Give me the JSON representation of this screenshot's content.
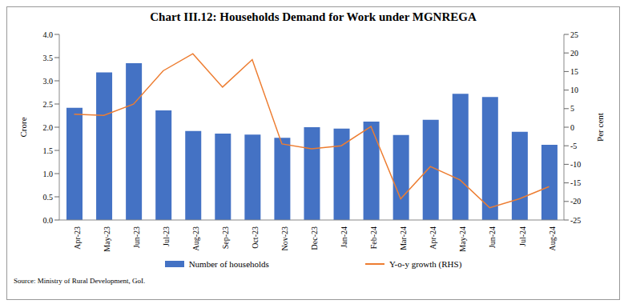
{
  "chart_data": {
    "type": "bar",
    "title": "Chart III.12: Households Demand for Work under MGNREGA",
    "categories": [
      "Apr-23",
      "May-23",
      "Jun-23",
      "Jul-23",
      "Aug-23",
      "Sep-23",
      "Oct-23",
      "Nov-23",
      "Dec-23",
      "Jan-24",
      "Feb-24",
      "Mar-24",
      "Apr-24",
      "May-24",
      "Jun-24",
      "Jul-24",
      "Aug-24"
    ],
    "series": [
      {
        "name": "Number of households",
        "type": "bar",
        "color": "#4472c4",
        "values": [
          2.42,
          3.18,
          3.38,
          2.36,
          1.92,
          1.86,
          1.84,
          1.77,
          2.0,
          1.97,
          2.12,
          1.83,
          2.16,
          2.72,
          2.65,
          1.9,
          1.62
        ]
      },
      {
        "name": "Y-o-y growth (RHS)",
        "type": "line",
        "color": "#ed7d31",
        "axis": "y2",
        "values": [
          3.5,
          3.2,
          6.2,
          15.2,
          19.8,
          10.8,
          18.2,
          -4.5,
          -5.8,
          -5.0,
          0.2,
          -19.3,
          -10.6,
          -14.2,
          -21.7,
          -19.3,
          -16.0
        ]
      }
    ],
    "y_label": "Crore",
    "y2_label": "Per cent",
    "ylim": [
      0,
      4
    ],
    "yticks": [
      {
        "value": 0,
        "label": "0.0"
      },
      0.5,
      {
        "value": 1,
        "label": "1.0"
      },
      1.5,
      {
        "value": 2,
        "label": "2.0"
      },
      2.5,
      {
        "value": 3,
        "label": "3.0"
      },
      3.5,
      {
        "value": 4,
        "label": "4.0"
      }
    ],
    "y2lim": [
      -25,
      25
    ],
    "y2ticks": [
      -25,
      -20,
      -15,
      -10,
      -5,
      0,
      5,
      10,
      15,
      20,
      25
    ],
    "grid": false,
    "legend": "bottom",
    "source": "Source: Ministry of Rural Development, GoI."
  }
}
